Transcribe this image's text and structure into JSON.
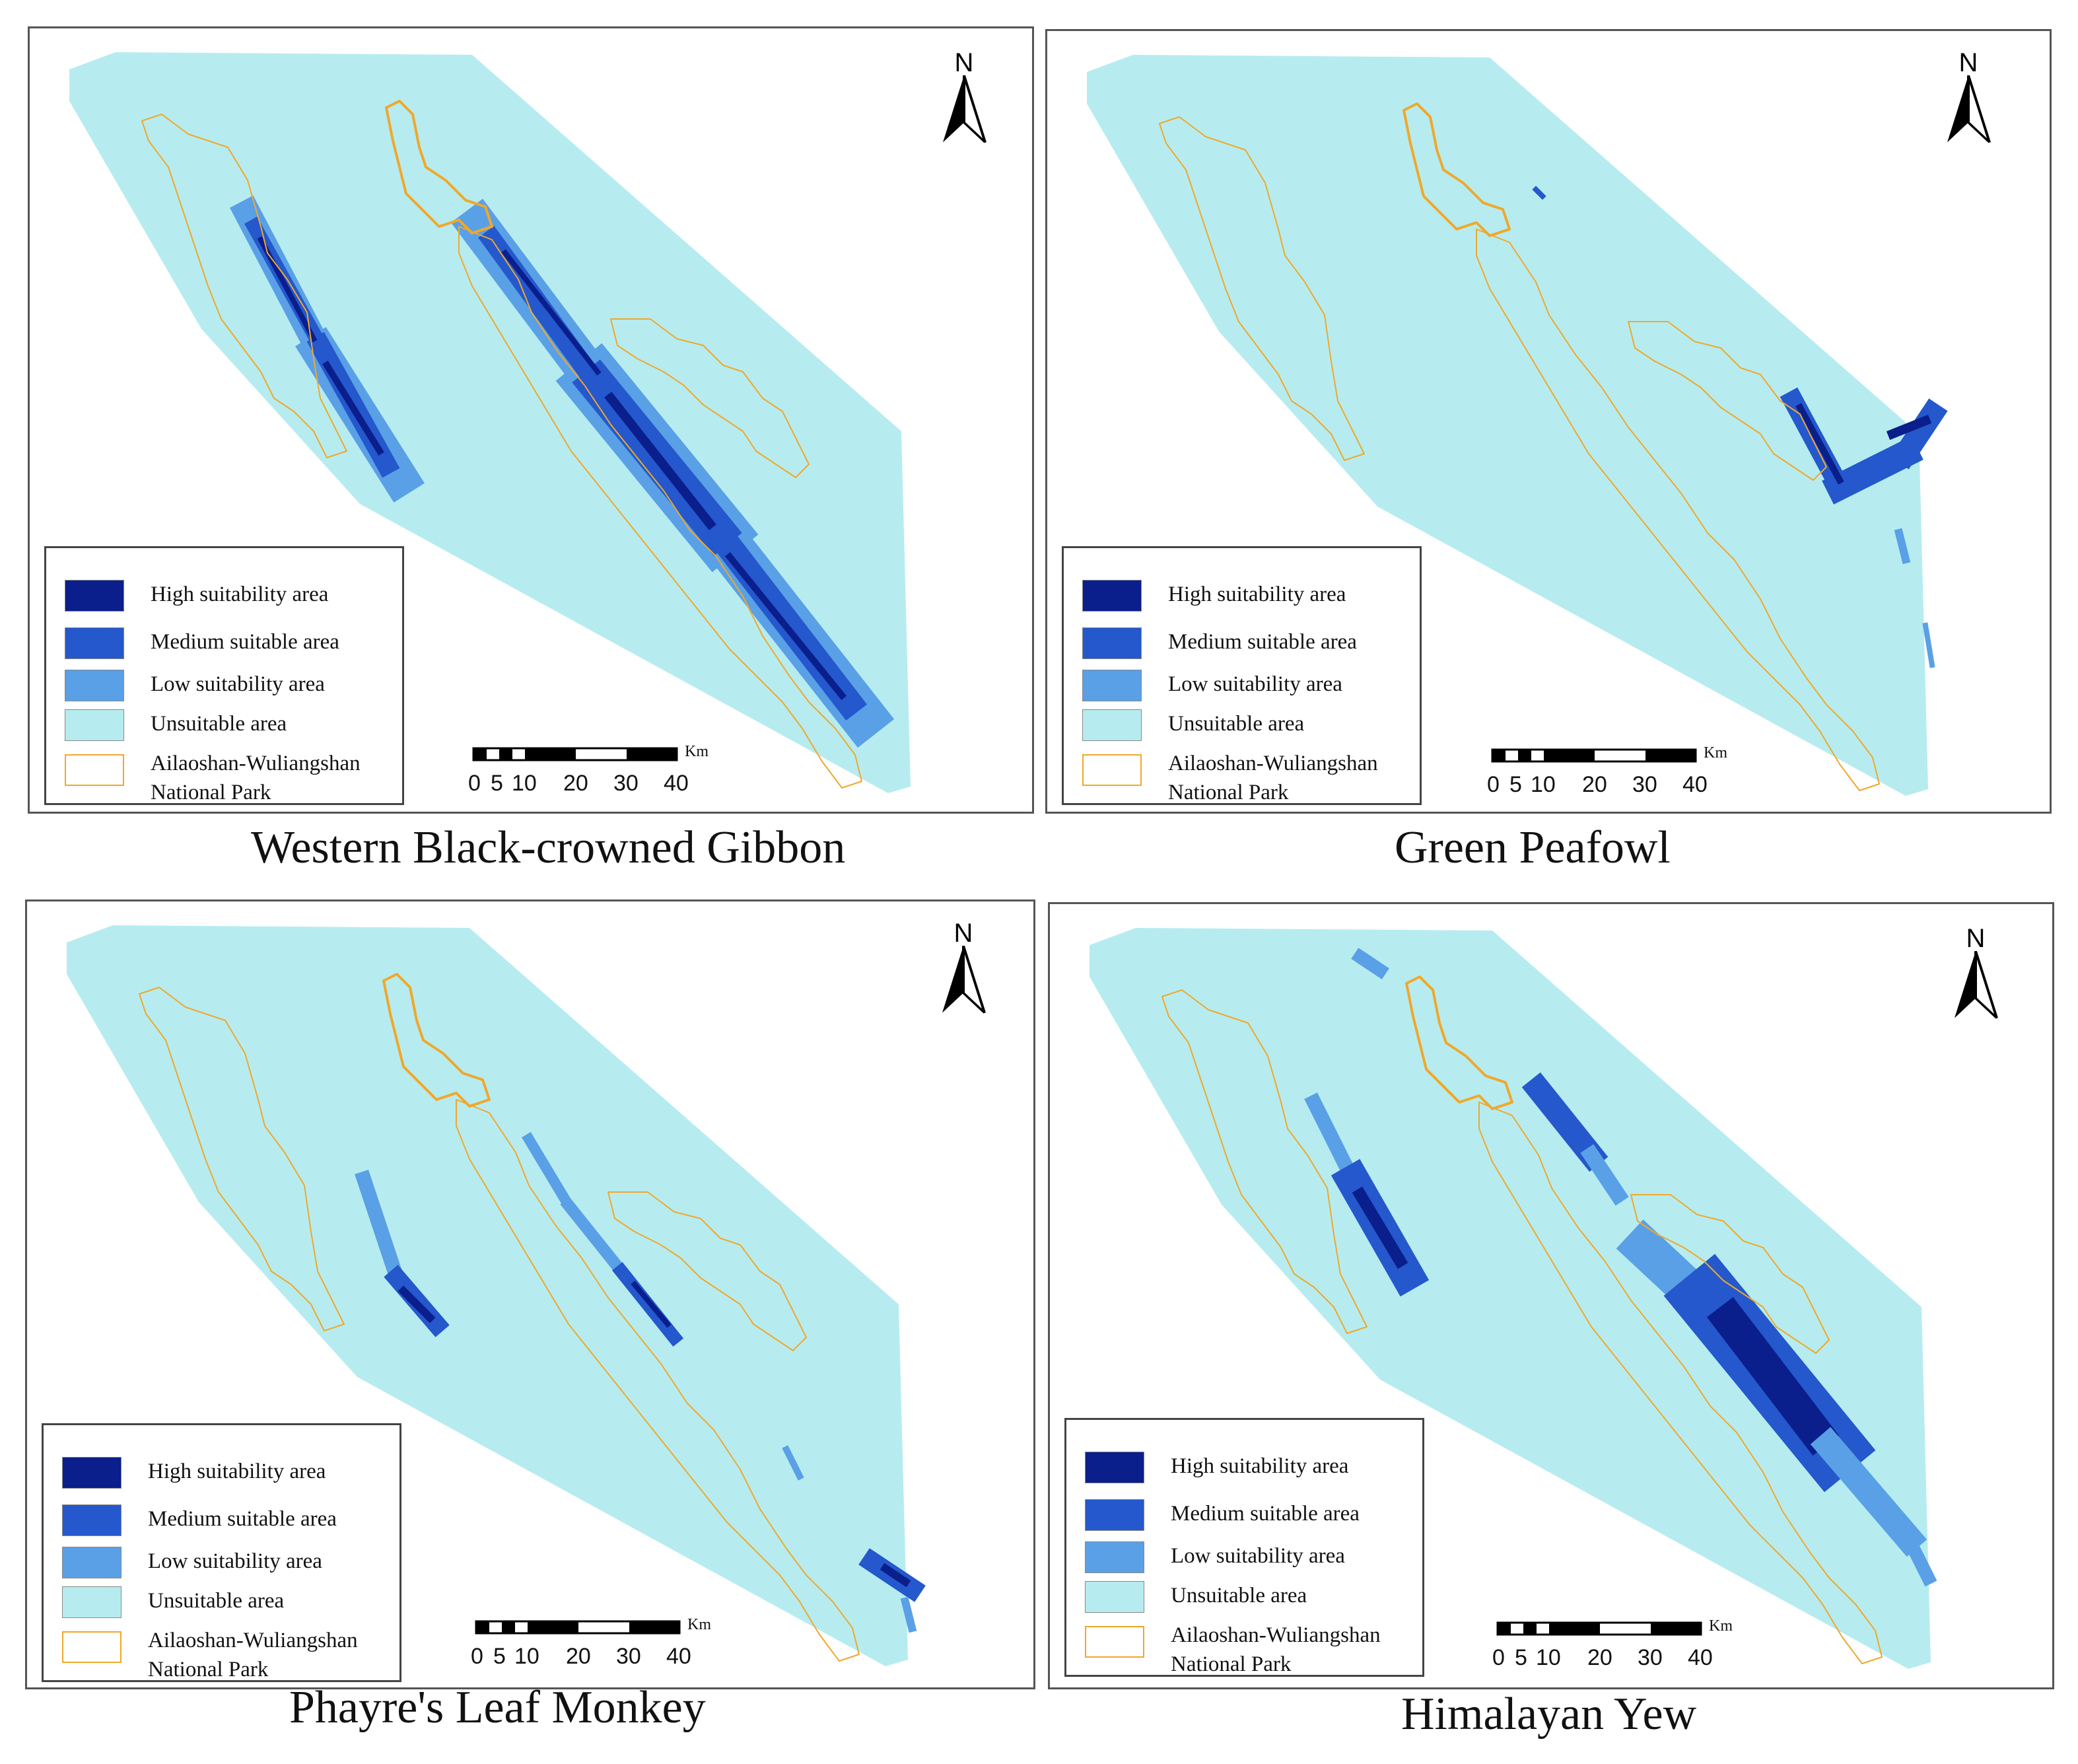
{
  "colors": {
    "high": "#0a1e8c",
    "medium": "#2458cc",
    "low": "#5aa0e6",
    "unsuitable": "#b6ecf0",
    "park_outline": "#f0a82a"
  },
  "legend": {
    "high": "High suitability area",
    "medium": "Medium suitable area",
    "low": "Low suitability area",
    "unsuitable": "Unsuitable area",
    "park_line1": "Ailaoshan-Wuliangshan",
    "park_line2": "National Park"
  },
  "north_label": "N",
  "scale": {
    "unit": "Km",
    "ticks": [
      "0",
      "5",
      "10",
      "20",
      "30",
      "40"
    ]
  },
  "panels": [
    {
      "caption": "Western Black-crowned Gibbon"
    },
    {
      "caption": "Green Peafowl"
    },
    {
      "caption": "Phayre's Leaf Monkey"
    },
    {
      "caption": "Himalayan Yew"
    }
  ]
}
